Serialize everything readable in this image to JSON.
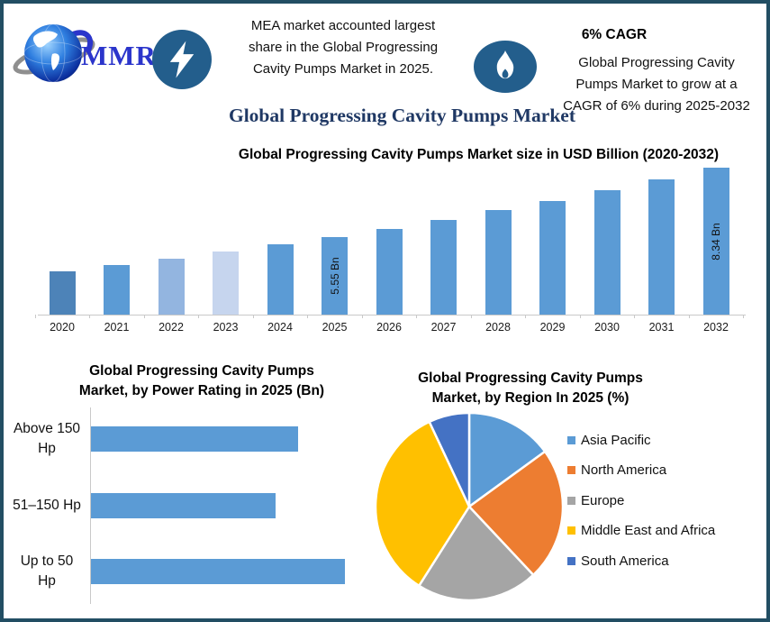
{
  "header": {
    "logo": {
      "text": "MMR",
      "globe_icon": "globe-icon"
    },
    "stat_left": {
      "icon": "lightning-icon",
      "text": "MEA market accounted largest\nshare in the Global Progressing\nCavity Pumps Market in 2025."
    },
    "stat_right": {
      "icon": "flame-icon",
      "heading": "6% CAGR",
      "text": "Global Progressing Cavity\nPumps Market to grow at a\nCAGR of 6% during 2025-2032"
    }
  },
  "page_title": "Global Progressing Cavity Pumps Market",
  "colors": {
    "border": "#224e63",
    "badge": "#235e8c",
    "title_navy": "#1f3864",
    "bar_default": "#5b9bd5",
    "axis_gray": "#c9c9c9",
    "logo_blue": "#2b35cb"
  },
  "chart_data": [
    {
      "type": "bar",
      "title": "Global Progressing Cavity Pumps Market size in USD Billion (2020-2032)",
      "categories": [
        "2020",
        "2021",
        "2022",
        "2023",
        "2024",
        "2025",
        "2026",
        "2027",
        "2028",
        "2029",
        "2030",
        "2031",
        "2032"
      ],
      "values": [
        4.15,
        4.4,
        4.66,
        4.94,
        5.24,
        5.55,
        5.88,
        6.24,
        6.61,
        7.01,
        7.43,
        7.87,
        8.34
      ],
      "unit": "USD Billion",
      "xlabel": "",
      "ylabel": "",
      "grid": false,
      "value_axis_visible": false,
      "data_labels": [
        {
          "category": "2025",
          "text": "5.55 Bn"
        },
        {
          "category": "2032",
          "text": "8.34 Bn"
        }
      ],
      "bar_colors": [
        "#4d83b8",
        "#5b9bd5",
        "#93b5e0",
        "#c6d5ee",
        "#5b9bd5",
        "#5b9bd5",
        "#5b9bd5",
        "#5b9bd5",
        "#5b9bd5",
        "#5b9bd5",
        "#5b9bd5",
        "#5b9bd5",
        "#5b9bd5"
      ]
    },
    {
      "type": "bar",
      "orientation": "horizontal",
      "title": "Global Progressing Cavity Pumps\nMarket, by Power Rating in 2025 (Bn)",
      "categories": [
        "Above 150 Hp",
        "51–150 Hp",
        "Up to 50 Hp"
      ],
      "category_lines": [
        [
          "Above 150",
          "Hp"
        ],
        [
          "51–150 Hp"
        ],
        [
          "Up to 50",
          "Hp"
        ]
      ],
      "values": [
        1.8,
        1.6,
        2.2
      ],
      "unit": "Bn",
      "grid": false,
      "bar_color": "#5b9bd5"
    },
    {
      "type": "pie",
      "title": "Global Progressing Cavity Pumps\nMarket, by Region In 2025 (%)",
      "unit": "%",
      "legend_position": "right",
      "slices": [
        {
          "label": "Asia Pacific",
          "value": 15,
          "color": "#5b9bd5"
        },
        {
          "label": "North America",
          "value": 23,
          "color": "#ed7d31"
        },
        {
          "label": "Europe",
          "value": 21,
          "color": "#a5a5a5"
        },
        {
          "label": "Middle East and Africa",
          "value": 34,
          "color": "#ffc000"
        },
        {
          "label": "South America",
          "value": 7,
          "color": "#4472c4"
        }
      ]
    }
  ]
}
